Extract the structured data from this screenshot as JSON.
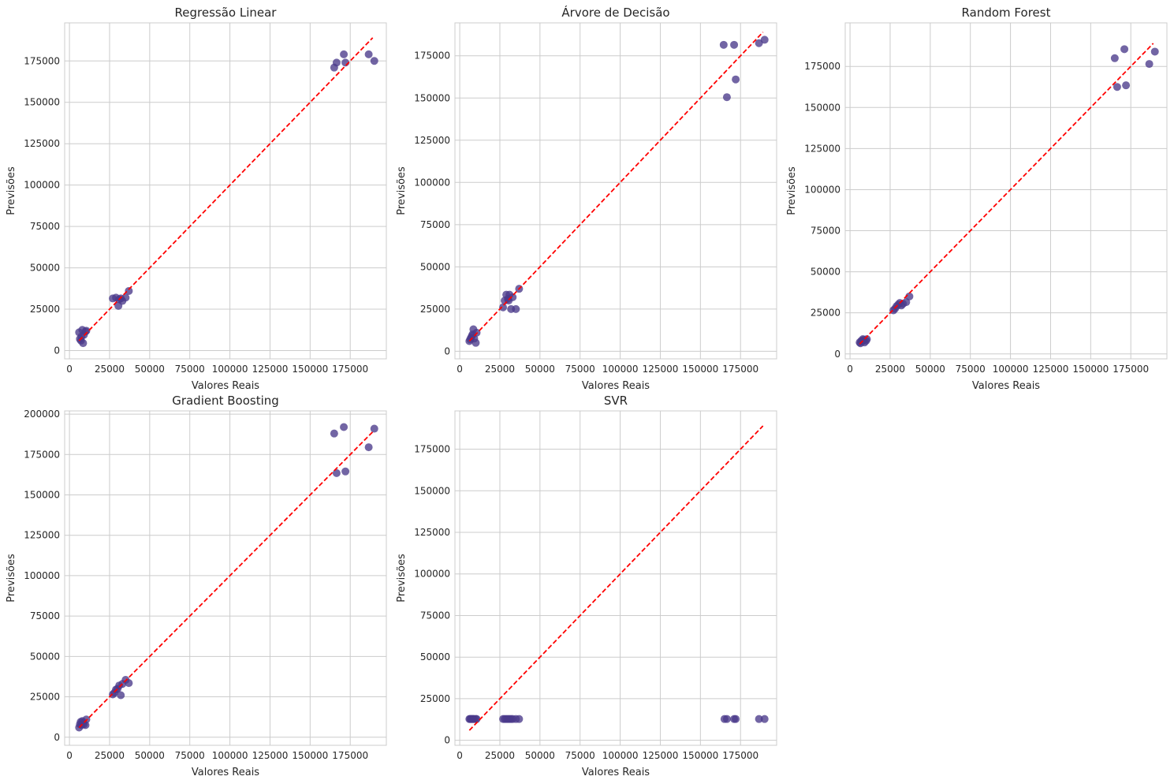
{
  "figure": {
    "background": "#ffffff",
    "point_color": "#4a3a8a",
    "line_color": "#ff0000"
  },
  "chart_data": [
    {
      "type": "scatter",
      "title": "Regressão Linear",
      "xlabel": "Valores Reais",
      "ylabel": "Previsões",
      "xlim": [
        -3000,
        197500
      ],
      "ylim": [
        -5000,
        198000
      ],
      "xticks": [
        0,
        25000,
        50000,
        75000,
        100000,
        125000,
        150000,
        175000
      ],
      "yticks": [
        0,
        25000,
        50000,
        75000,
        100000,
        125000,
        150000,
        175000
      ],
      "xtick_labels": [
        "0",
        "25000",
        "50000",
        "75000",
        "100000",
        "125000",
        "150000",
        "175000"
      ],
      "ytick_labels": [
        "0",
        "25000",
        "50000",
        "75000",
        "100000",
        "125000",
        "150000",
        "175000"
      ],
      "grid": true,
      "reference_line": [
        [
          6000,
          6000
        ],
        [
          189000,
          189000
        ]
      ],
      "points": [
        [
          6000,
          11000
        ],
        [
          6500,
          7000
        ],
        [
          7200,
          6000
        ],
        [
          7500,
          8500
        ],
        [
          8000,
          12500
        ],
        [
          8500,
          4500
        ],
        [
          9000,
          9500
        ],
        [
          10000,
          11500
        ],
        [
          10500,
          12000
        ],
        [
          27000,
          31500
        ],
        [
          29000,
          32000
        ],
        [
          30500,
          27000
        ],
        [
          31000,
          31000
        ],
        [
          32000,
          31500
        ],
        [
          33000,
          30000
        ],
        [
          35000,
          32000
        ],
        [
          37000,
          36000
        ],
        [
          165000,
          171000
        ],
        [
          166500,
          174000
        ],
        [
          171000,
          179000
        ],
        [
          172000,
          174000
        ],
        [
          186500,
          179000
        ],
        [
          190000,
          175000
        ]
      ]
    },
    {
      "type": "scatter",
      "title": "Árvore de Decisão",
      "xlabel": "Valores Reais",
      "ylabel": "Previsões",
      "xlim": [
        -3000,
        197500
      ],
      "ylim": [
        -4500,
        194500
      ],
      "xticks": [
        0,
        25000,
        50000,
        75000,
        100000,
        125000,
        150000,
        175000
      ],
      "yticks": [
        0,
        25000,
        50000,
        75000,
        100000,
        125000,
        150000,
        175000
      ],
      "xtick_labels": [
        "0",
        "25000",
        "50000",
        "75000",
        "100000",
        "125000",
        "150000",
        "175000"
      ],
      "ytick_labels": [
        "0",
        "25000",
        "50000",
        "75000",
        "100000",
        "125000",
        "150000",
        "175000"
      ],
      "grid": true,
      "reference_line": [
        [
          6000,
          6000
        ],
        [
          189000,
          189000
        ]
      ],
      "points": [
        [
          6000,
          6000
        ],
        [
          6500,
          7000
        ],
        [
          7000,
          8000
        ],
        [
          7500,
          9000
        ],
        [
          8000,
          10000
        ],
        [
          8500,
          13000
        ],
        [
          9000,
          7500
        ],
        [
          10000,
          5000
        ],
        [
          10500,
          11000
        ],
        [
          27000,
          26000
        ],
        [
          28000,
          30000
        ],
        [
          29000,
          33500
        ],
        [
          30000,
          31000
        ],
        [
          30500,
          30000
        ],
        [
          31000,
          33500
        ],
        [
          32000,
          25000
        ],
        [
          33000,
          32000
        ],
        [
          35000,
          25000
        ],
        [
          37000,
          37000
        ],
        [
          164500,
          181500
        ],
        [
          166500,
          150500
        ],
        [
          171000,
          181500
        ],
        [
          172000,
          161000
        ],
        [
          186500,
          182500
        ],
        [
          190000,
          184500
        ]
      ]
    },
    {
      "type": "scatter",
      "title": "Random Forest",
      "xlabel": "Valores Reais",
      "ylabel": "Previsões",
      "xlim": [
        -3000,
        197500
      ],
      "ylim": [
        -3000,
        201500
      ],
      "xticks": [
        0,
        25000,
        50000,
        75000,
        100000,
        125000,
        150000,
        175000
      ],
      "yticks": [
        0,
        25000,
        50000,
        75000,
        100000,
        125000,
        150000,
        175000
      ],
      "xtick_labels": [
        "0",
        "25000",
        "50000",
        "75000",
        "100000",
        "125000",
        "150000",
        "175000"
      ],
      "ytick_labels": [
        "0",
        "25000",
        "50000",
        "75000",
        "100000",
        "125000",
        "150000",
        "175000"
      ],
      "grid": true,
      "reference_line": [
        [
          6000,
          6000
        ],
        [
          189000,
          189000
        ]
      ],
      "points": [
        [
          6000,
          7000
        ],
        [
          6500,
          6500
        ],
        [
          7000,
          8000
        ],
        [
          7500,
          7500
        ],
        [
          8000,
          9000
        ],
        [
          8500,
          8500
        ],
        [
          9000,
          7000
        ],
        [
          10000,
          8000
        ],
        [
          10500,
          9000
        ],
        [
          27000,
          26500
        ],
        [
          28000,
          27500
        ],
        [
          29000,
          29000
        ],
        [
          30000,
          30000
        ],
        [
          31000,
          31000
        ],
        [
          32000,
          29500
        ],
        [
          33000,
          30500
        ],
        [
          35000,
          31500
        ],
        [
          37000,
          35000
        ],
        [
          165000,
          180000
        ],
        [
          166500,
          162500
        ],
        [
          171000,
          185500
        ],
        [
          172000,
          163500
        ],
        [
          186500,
          176500
        ],
        [
          190000,
          184000
        ]
      ]
    },
    {
      "type": "scatter",
      "title": "Gradient Boosting",
      "xlabel": "Valores Reais",
      "ylabel": "Previsões",
      "xlim": [
        -3000,
        197500
      ],
      "ylim": [
        -5000,
        202000
      ],
      "xticks": [
        0,
        25000,
        50000,
        75000,
        100000,
        125000,
        150000,
        175000
      ],
      "yticks": [
        0,
        25000,
        50000,
        75000,
        100000,
        125000,
        150000,
        175000,
        200000
      ],
      "xtick_labels": [
        "0",
        "25000",
        "50000",
        "75000",
        "100000",
        "125000",
        "150000",
        "175000"
      ],
      "ytick_labels": [
        "0",
        "25000",
        "50000",
        "75000",
        "100000",
        "125000",
        "150000",
        "175000",
        "200000"
      ],
      "grid": true,
      "reference_line": [
        [
          6000,
          6000
        ],
        [
          189000,
          189000
        ]
      ],
      "points": [
        [
          6000,
          6000
        ],
        [
          6500,
          8000
        ],
        [
          7000,
          9500
        ],
        [
          7500,
          7500
        ],
        [
          8000,
          10000
        ],
        [
          8500,
          9000
        ],
        [
          9000,
          8000
        ],
        [
          10000,
          7500
        ],
        [
          10500,
          11000
        ],
        [
          27000,
          26500
        ],
        [
          28000,
          27500
        ],
        [
          29000,
          29500
        ],
        [
          30000,
          30000
        ],
        [
          31000,
          32000
        ],
        [
          32000,
          26000
        ],
        [
          33000,
          33000
        ],
        [
          35000,
          35500
        ],
        [
          37000,
          33500
        ],
        [
          165000,
          188000
        ],
        [
          166500,
          163500
        ],
        [
          171000,
          192000
        ],
        [
          172000,
          164500
        ],
        [
          186500,
          179500
        ],
        [
          190000,
          191000
        ]
      ]
    },
    {
      "type": "scatter",
      "title": "SVR",
      "xlabel": "Valores Reais",
      "ylabel": "Previsões",
      "xlim": [
        -3000,
        197500
      ],
      "ylim": [
        -3000,
        198000
      ],
      "xticks": [
        0,
        25000,
        50000,
        75000,
        100000,
        125000,
        150000,
        175000
      ],
      "yticks": [
        0,
        25000,
        50000,
        75000,
        100000,
        125000,
        150000,
        175000
      ],
      "xtick_labels": [
        "0",
        "25000",
        "50000",
        "75000",
        "100000",
        "125000",
        "150000",
        "175000"
      ],
      "ytick_labels": [
        "0",
        "25000",
        "50000",
        "75000",
        "100000",
        "125000",
        "150000",
        "175000"
      ],
      "grid": true,
      "reference_line": [
        [
          6000,
          6000
        ],
        [
          189000,
          189000
        ]
      ],
      "points": [
        [
          6000,
          12800
        ],
        [
          6500,
          12800
        ],
        [
          7000,
          12800
        ],
        [
          7500,
          12800
        ],
        [
          8000,
          12800
        ],
        [
          8500,
          12800
        ],
        [
          9000,
          12800
        ],
        [
          10000,
          12800
        ],
        [
          10500,
          12800
        ],
        [
          27000,
          12800
        ],
        [
          28000,
          12800
        ],
        [
          29000,
          12800
        ],
        [
          30000,
          12800
        ],
        [
          31000,
          12800
        ],
        [
          32000,
          12800
        ],
        [
          33000,
          12800
        ],
        [
          35000,
          12800
        ],
        [
          37000,
          12800
        ],
        [
          165000,
          12800
        ],
        [
          166500,
          12800
        ],
        [
          171000,
          12800
        ],
        [
          172000,
          12800
        ],
        [
          186500,
          12800
        ],
        [
          190000,
          12800
        ]
      ]
    }
  ]
}
